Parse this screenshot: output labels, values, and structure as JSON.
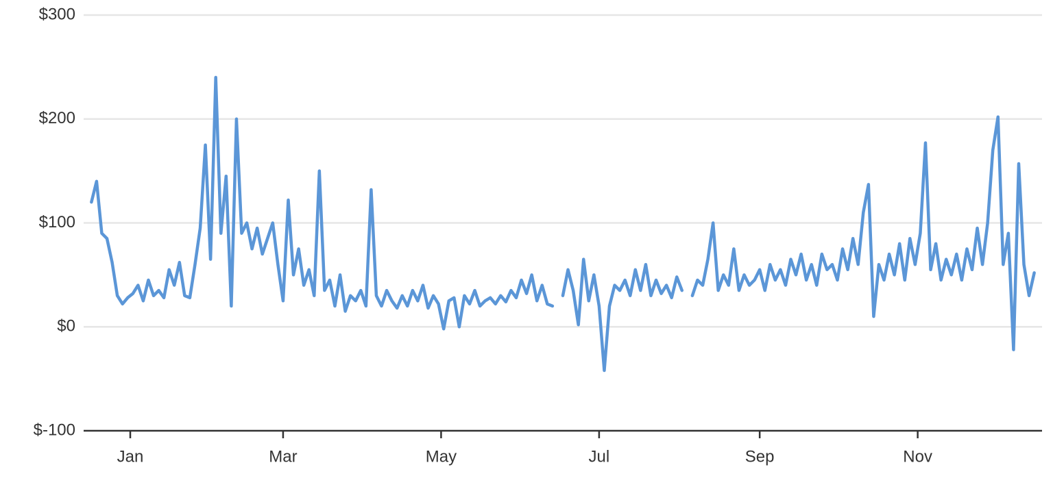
{
  "chart_data": {
    "type": "line",
    "color": "#5b96d7",
    "grid": true,
    "ylim": [
      -100,
      300
    ],
    "yticks": [
      {
        "value": -100,
        "label": "$-100"
      },
      {
        "value": 0,
        "label": "$0"
      },
      {
        "value": 100,
        "label": "$100"
      },
      {
        "value": 200,
        "label": "$200"
      },
      {
        "value": 300,
        "label": "$300"
      }
    ],
    "xlim": [
      -18,
      352
    ],
    "xticks": [
      {
        "value": 0,
        "label": "Jan"
      },
      {
        "value": 59,
        "label": "Mar"
      },
      {
        "value": 120,
        "label": "May"
      },
      {
        "value": 181,
        "label": "Jul"
      },
      {
        "value": 243,
        "label": "Sep"
      },
      {
        "value": 304,
        "label": "Nov"
      }
    ],
    "x": [
      -15,
      -13,
      -11,
      -9,
      -7,
      -5,
      -3,
      -1,
      1,
      3,
      5,
      7,
      9,
      11,
      13,
      15,
      17,
      19,
      21,
      23,
      25,
      27,
      29,
      31,
      33,
      35,
      37,
      39,
      41,
      43,
      45,
      47,
      49,
      51,
      53,
      55,
      57,
      59,
      61,
      63,
      65,
      67,
      69,
      71,
      73,
      75,
      77,
      79,
      81,
      83,
      85,
      87,
      89,
      91,
      93,
      95,
      97,
      99,
      101,
      103,
      105,
      107,
      109,
      111,
      113,
      115,
      117,
      119,
      121,
      123,
      125,
      127,
      129,
      131,
      133,
      135,
      137,
      139,
      141,
      143,
      145,
      147,
      149,
      151,
      153,
      155,
      157,
      159,
      161,
      163,
      165,
      167,
      169,
      171,
      173,
      175,
      177,
      179,
      181,
      183,
      185,
      187,
      189,
      191,
      193,
      195,
      197,
      199,
      201,
      203,
      205,
      207,
      209,
      211,
      213,
      215,
      217,
      219,
      221,
      223,
      225,
      227,
      229,
      231,
      233,
      235,
      237,
      239,
      241,
      243,
      245,
      247,
      249,
      251,
      253,
      255,
      257,
      259,
      261,
      263,
      265,
      267,
      269,
      271,
      273,
      275,
      277,
      279,
      281,
      283,
      285,
      287,
      289,
      291,
      293,
      295,
      297,
      299,
      301,
      303,
      305,
      307,
      309,
      311,
      313,
      315,
      317,
      319,
      321,
      323,
      325,
      327,
      329,
      331,
      333,
      335,
      337,
      339,
      341,
      343,
      345,
      347,
      349
    ],
    "values": [
      120,
      140,
      90,
      85,
      62,
      30,
      22,
      28,
      32,
      40,
      25,
      45,
      30,
      35,
      28,
      55,
      40,
      62,
      30,
      28,
      60,
      95,
      175,
      65,
      240,
      90,
      145,
      20,
      200,
      90,
      100,
      75,
      95,
      70,
      85,
      100,
      60,
      25,
      122,
      50,
      75,
      40,
      55,
      30,
      150,
      35,
      45,
      20,
      50,
      15,
      30,
      25,
      35,
      20,
      132,
      30,
      20,
      35,
      25,
      18,
      30,
      20,
      35,
      25,
      40,
      18,
      30,
      22,
      -2,
      25,
      28,
      0,
      30,
      22,
      35,
      20,
      25,
      28,
      22,
      30,
      24,
      35,
      28,
      45,
      32,
      50,
      25,
      40,
      22,
      20,
      null,
      30,
      55,
      35,
      2,
      65,
      25,
      50,
      20,
      -42,
      20,
      40,
      35,
      45,
      30,
      55,
      35,
      60,
      30,
      45,
      32,
      40,
      28,
      48,
      35,
      null,
      30,
      45,
      40,
      65,
      100,
      35,
      50,
      40,
      75,
      35,
      50,
      40,
      45,
      55,
      35,
      60,
      45,
      55,
      40,
      65,
      50,
      70,
      45,
      60,
      40,
      70,
      55,
      60,
      45,
      75,
      55,
      85,
      60,
      110,
      137,
      10,
      60,
      45,
      70,
      50,
      80,
      45,
      85,
      60,
      90,
      177,
      55,
      80,
      45,
      65,
      50,
      70,
      45,
      75,
      55,
      95,
      60,
      100,
      170,
      202,
      60,
      90,
      -22,
      157,
      60,
      30,
      52
    ]
  }
}
